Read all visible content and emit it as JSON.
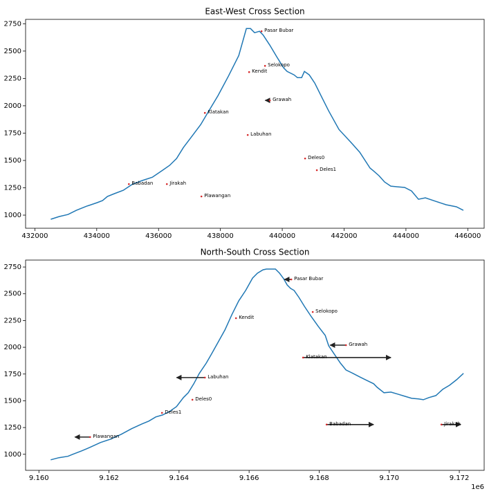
{
  "chart_data": [
    {
      "type": "line",
      "title": "East-West Cross Section",
      "x": [
        432514,
        432782,
        433073,
        433341,
        433676,
        434012,
        434190,
        434347,
        434570,
        434861,
        435129,
        435464,
        435800,
        436135,
        436358,
        436582,
        436805,
        437096,
        437364,
        437588,
        437923,
        438258,
        438593,
        438839,
        438973,
        439107,
        439264,
        439376,
        439599,
        439823,
        440046,
        440158,
        440381,
        440493,
        440627,
        440717,
        440873,
        441052,
        441275,
        441499,
        441834,
        442169,
        442505,
        442840,
        442952,
        443130,
        443309,
        443510,
        443734,
        443957,
        444181,
        444404,
        444628,
        444963,
        445298,
        445634,
        445857
      ],
      "series": [
        {
          "color": "#1f77b4",
          "values": [
            962,
            987,
            1006,
            1044,
            1082,
            1114,
            1133,
            1171,
            1196,
            1227,
            1278,
            1316,
            1347,
            1411,
            1455,
            1518,
            1619,
            1727,
            1828,
            1935,
            2093,
            2270,
            2459,
            2706,
            2706,
            2668,
            2681,
            2649,
            2554,
            2447,
            2346,
            2314,
            2283,
            2257,
            2257,
            2314,
            2283,
            2207,
            2080,
            1954,
            1783,
            1682,
            1575,
            1430,
            1404,
            1360,
            1303,
            1265,
            1259,
            1253,
            1221,
            1145,
            1158,
            1126,
            1095,
            1076,
            1044
          ]
        }
      ],
      "points": {
        "color": "#d62728",
        "arrow_color": "#222222",
        "labels": [
          "Pasar Bubar",
          "Selokopo",
          "Kendit",
          "Grawah",
          "Klatakan",
          "Labuhan",
          "Deles0",
          "Deles1",
          "Babadan",
          "Jirakah",
          "Plawangan"
        ],
        "x": [
          439331,
          439443,
          438929,
          439599,
          437498,
          438884,
          440739,
          441119,
          435040,
          436269,
          437386
        ],
        "y": [
          2681,
          2365,
          2308,
          2049,
          1935,
          1733,
          1518,
          1411,
          1284,
          1284,
          1171
        ],
        "dx": [
          null,
          null,
          null,
          -150,
          null,
          null,
          null,
          null,
          null,
          null,
          null
        ]
      },
      "xlim": [
        431700,
        446530
      ],
      "ylim": [
        880,
        2790
      ],
      "xticks": [
        432000,
        434000,
        436000,
        438000,
        440000,
        442000,
        444000,
        446000
      ],
      "yticks": [
        1000,
        1250,
        1500,
        1750,
        2000,
        2250,
        2500,
        2750
      ]
    },
    {
      "type": "line",
      "title": "North-South Cross Section",
      "x": [
        9160336,
        9160572,
        9160829,
        9160967,
        9161224,
        9161461,
        9161757,
        9162053,
        9162349,
        9162645,
        9162941,
        9163139,
        9163336,
        9163533,
        9163731,
        9163928,
        9164126,
        9164264,
        9164422,
        9164580,
        9164777,
        9164915,
        9165113,
        9165310,
        9165507,
        9165705,
        9165902,
        9166100,
        9166238,
        9166396,
        9166494,
        9166751,
        9166870,
        9166988,
        9167087,
        9167185,
        9167284,
        9167422,
        9167580,
        9167778,
        9167975,
        9168172,
        9168271,
        9168429,
        9168607,
        9168765,
        9168962,
        9169159,
        9169357,
        9169554,
        9169653,
        9169851,
        9170048,
        9170245,
        9170443,
        9170640,
        9170837,
        9170975,
        9171133,
        9171331,
        9171528,
        9171725,
        9171923,
        9172120
      ],
      "series": [
        {
          "color": "#1f77b4",
          "values": [
            948,
            968,
            981,
            1000,
            1032,
            1065,
            1110,
            1142,
            1187,
            1239,
            1284,
            1310,
            1349,
            1368,
            1400,
            1446,
            1530,
            1575,
            1659,
            1756,
            1852,
            1930,
            2046,
            2162,
            2305,
            2434,
            2531,
            2647,
            2692,
            2724,
            2731,
            2731,
            2692,
            2640,
            2582,
            2550,
            2531,
            2466,
            2382,
            2285,
            2195,
            2111,
            2014,
            1937,
            1852,
            1788,
            1756,
            1723,
            1691,
            1659,
            1626,
            1575,
            1581,
            1562,
            1542,
            1523,
            1517,
            1510,
            1530,
            1549,
            1607,
            1646,
            1697,
            1756
          ]
        }
      ],
      "points": {
        "color": "#d62728",
        "arrow_color": "#222222",
        "labels": [
          "Pasar Bubar",
          "Selokopo",
          "Kendit",
          "Grawah",
          "Klatakan",
          "Labuhan",
          "Deles0",
          "Deles1",
          "Plawangan",
          "Babadan",
          "Jirakah"
        ],
        "x": [
          9167205,
          9167817,
          9165626,
          9168765,
          9167541,
          9164738,
          9164382,
          9163514,
          9161461,
          9168212,
          9171489
        ],
        "y": [
          2634,
          2330,
          2272,
          2020,
          1904,
          1717,
          1510,
          1387,
          1161,
          1278,
          1278
        ],
        "dx": [
          -197,
          null,
          null,
          -454,
          2507,
          -809,
          null,
          null,
          -434,
          1342,
          553
        ]
      },
      "xlim": [
        9159620,
        9172710
      ],
      "ylim": [
        850,
        2815
      ],
      "x_offset_label": "1e6",
      "xticks": [
        {
          "value": 9160000,
          "label": "9.160"
        },
        {
          "value": 9162000,
          "label": "9.162"
        },
        {
          "value": 9164000,
          "label": "9.164"
        },
        {
          "value": 9166000,
          "label": "9.166"
        },
        {
          "value": 9168000,
          "label": "9.168"
        },
        {
          "value": 9170000,
          "label": "9.170"
        },
        {
          "value": 9172000,
          "label": "9.172"
        }
      ],
      "yticks": [
        1000,
        1250,
        1500,
        1750,
        2000,
        2250,
        2500,
        2750
      ]
    }
  ]
}
